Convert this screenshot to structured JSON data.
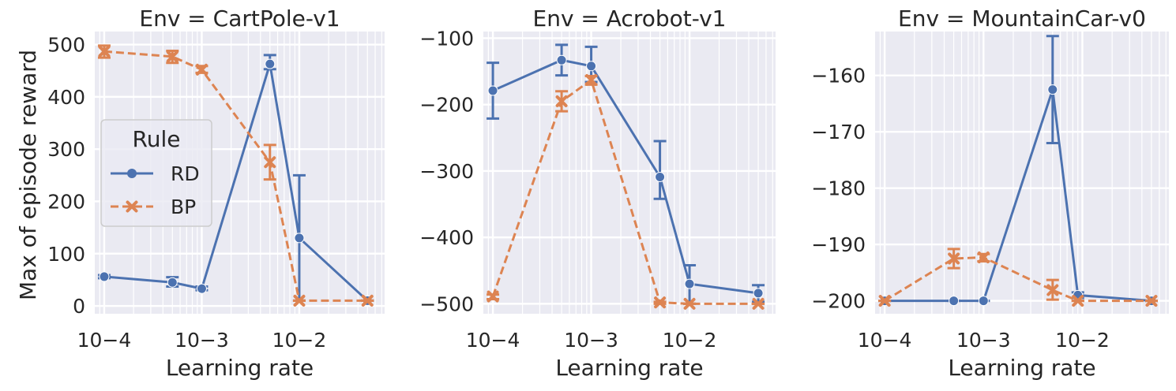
{
  "colors": {
    "RD": "#4c72b0",
    "BP": "#dd8452",
    "panel_bg": "#eaeaf2",
    "grid": "#ffffff"
  },
  "chart_data": [
    {
      "type": "line",
      "title": "Env = CartPole-v1",
      "xlabel": "Learning rate",
      "ylabel": "Max of episode reward",
      "xscale": "log",
      "xlim": [
        8e-05,
        0.075
      ],
      "ylim": [
        -15,
        525
      ],
      "yticks": [
        0,
        100,
        200,
        300,
        400,
        500
      ],
      "ytick_labels": [
        "0",
        "100",
        "200",
        "300",
        "400",
        "500"
      ],
      "xticks": [
        0.0001,
        0.001,
        0.01
      ],
      "xtick_labels": [
        "10−4",
        "10−3",
        "10−2"
      ],
      "grid": true,
      "legend": {
        "title": "Rule",
        "placement": "center-left",
        "entries": [
          "RD",
          "BP"
        ]
      },
      "series": [
        {
          "name": "RD",
          "marker": "circle",
          "linestyle": "solid",
          "x": [
            0.0001,
            0.0005,
            0.001,
            0.005,
            0.01,
            0.05
          ],
          "y": [
            56,
            45,
            33,
            463,
            130,
            10
          ],
          "err_low": [
            53,
            37,
            30,
            453,
            10,
            10
          ],
          "err_high": [
            59,
            55,
            37,
            480,
            250,
            10
          ]
        },
        {
          "name": "BP",
          "marker": "x",
          "linestyle": "dashed",
          "x": [
            0.0001,
            0.0005,
            0.001,
            0.005,
            0.01,
            0.05
          ],
          "y": [
            487,
            477,
            452,
            275,
            10,
            10
          ],
          "err_low": [
            475,
            465,
            446,
            242,
            10,
            10
          ],
          "err_high": [
            498,
            488,
            459,
            308,
            10,
            10
          ]
        }
      ]
    },
    {
      "type": "line",
      "title": "Env = Acrobot-v1",
      "xlabel": "Learning rate",
      "ylabel": "",
      "xscale": "log",
      "xlim": [
        8e-05,
        0.075
      ],
      "ylim": [
        -515,
        -90
      ],
      "yticks": [
        -500,
        -400,
        -300,
        -200,
        -100
      ],
      "ytick_labels": [
        "−500",
        "−400",
        "−300",
        "−200",
        "−100"
      ],
      "xticks": [
        0.0001,
        0.001,
        0.01
      ],
      "xtick_labels": [
        "10−4",
        "10−3",
        "10−2"
      ],
      "grid": true,
      "series": [
        {
          "name": "RD",
          "marker": "circle",
          "linestyle": "solid",
          "x": [
            0.0001,
            0.0005,
            0.001,
            0.005,
            0.01,
            0.05
          ],
          "y": [
            -179,
            -133,
            -142,
            -309,
            -470,
            -484
          ],
          "err_low": [
            -221,
            -156,
            -166,
            -342,
            -500,
            -497
          ],
          "err_high": [
            -137,
            -110,
            -113,
            -255,
            -442,
            -472
          ]
        },
        {
          "name": "BP",
          "marker": "x",
          "linestyle": "dashed",
          "x": [
            0.0001,
            0.0005,
            0.001,
            0.005,
            0.01,
            0.05
          ],
          "y": [
            -489,
            -195,
            -163,
            -498,
            -500,
            -500
          ],
          "err_low": [
            -493,
            -210,
            -170,
            -500,
            -500,
            -500
          ],
          "err_high": [
            -486,
            -180,
            -157,
            -497,
            -500,
            -500
          ]
        }
      ]
    },
    {
      "type": "line",
      "title": "Env = MountainCar-v0",
      "xlabel": "Learning rate",
      "ylabel": "",
      "xscale": "log",
      "xlim": [
        8e-05,
        0.075
      ],
      "ylim": [
        -202.3,
        -152.2
      ],
      "yticks": [
        -200,
        -190,
        -180,
        -170,
        -160
      ],
      "ytick_labels": [
        "−200",
        "−190",
        "−180",
        "−170",
        "−160"
      ],
      "xticks": [
        0.0001,
        0.001,
        0.01
      ],
      "xtick_labels": [
        "10−4",
        "10−3",
        "10−2"
      ],
      "grid": true,
      "series": [
        {
          "name": "RD",
          "marker": "circle",
          "linestyle": "solid",
          "x": [
            0.0001,
            0.0005,
            0.001,
            0.005,
            0.009,
            0.05
          ],
          "y": [
            -200,
            -200,
            -200,
            -162.5,
            -199,
            -200
          ],
          "err_low": [
            -200,
            -200,
            -200,
            -172,
            -199.5,
            -200
          ],
          "err_high": [
            -200,
            -200,
            -200,
            -153,
            -198.5,
            -200
          ]
        },
        {
          "name": "BP",
          "marker": "x",
          "linestyle": "dashed",
          "x": [
            0.0001,
            0.0005,
            0.001,
            0.005,
            0.009,
            0.05
          ],
          "y": [
            -200,
            -192.5,
            -192.3,
            -198.1,
            -200,
            -200
          ],
          "err_low": [
            -200,
            -194.2,
            -193,
            -199.8,
            -200,
            -200
          ],
          "err_high": [
            -200,
            -190.8,
            -191.7,
            -196.3,
            -200,
            -200
          ]
        }
      ]
    }
  ]
}
